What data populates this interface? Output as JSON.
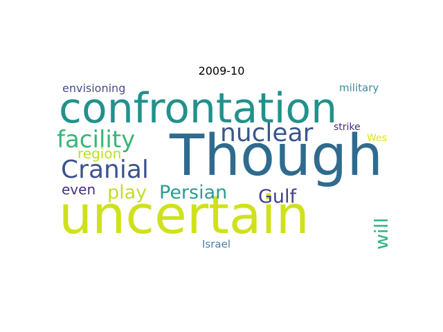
{
  "title": "2009-10",
  "words": {
    "though": {
      "text": "Though",
      "color": "#2f6b8e"
    },
    "uncertain": {
      "text": "uncertain",
      "color": "#cfe11c"
    },
    "confrontation": {
      "text": "confrontation",
      "color": "#21918c"
    },
    "nuclear": {
      "text": "nuclear",
      "color": "#39568c"
    },
    "facility": {
      "text": "facility",
      "color": "#35b779"
    },
    "cranial": {
      "text": "Cranial",
      "color": "#3b528b"
    },
    "persian": {
      "text": "Persian",
      "color": "#2a9d8f"
    },
    "play": {
      "text": "play",
      "color": "#c2df23"
    },
    "gulf": {
      "text": "Gulf",
      "color": "#424086"
    },
    "will": {
      "text": "will",
      "color": "#2fb47c"
    },
    "region": {
      "text": "region",
      "color": "#bddf26"
    },
    "even": {
      "text": "even",
      "color": "#46327e"
    },
    "envisioning": {
      "text": "envisioning",
      "color": "#4a4a8f"
    },
    "military": {
      "text": "military",
      "color": "#3b8c9f"
    },
    "strike": {
      "text": "strike",
      "color": "#482878"
    },
    "west": {
      "text": "West",
      "color": "#dde318"
    },
    "israel": {
      "text": "Israel",
      "color": "#4b7ca8"
    }
  }
}
